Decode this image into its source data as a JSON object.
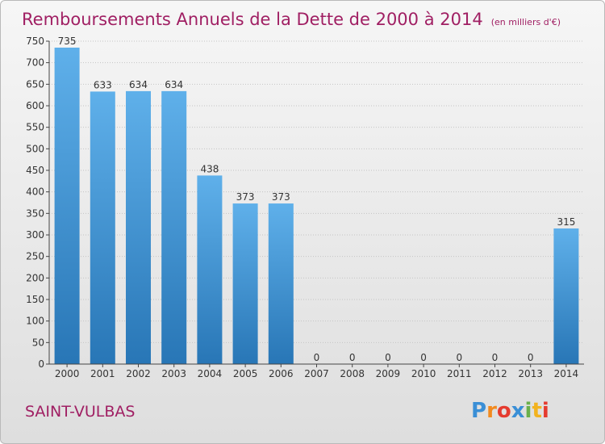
{
  "chart_data": {
    "type": "bar",
    "title": "Remboursements Annuels de la Dette de 2000 à 2014",
    "subtitle": "(en milliers d'€)",
    "categories": [
      "2000",
      "2001",
      "2002",
      "2003",
      "2004",
      "2005",
      "2006",
      "2007",
      "2008",
      "2009",
      "2010",
      "2011",
      "2012",
      "2013",
      "2014"
    ],
    "values": [
      735,
      633,
      634,
      634,
      438,
      373,
      373,
      0,
      0,
      0,
      0,
      0,
      0,
      0,
      315
    ],
    "ylim": [
      0,
      750
    ],
    "yticks": [
      0,
      50,
      100,
      150,
      200,
      250,
      300,
      350,
      400,
      450,
      500,
      550,
      600,
      650,
      700,
      750
    ],
    "grid": true,
    "xlabel": "",
    "ylabel": ""
  },
  "labels": {
    "commune": "SAINT-VULBAS",
    "logo": "Proxiti"
  },
  "colors": {
    "title": "#a01f63",
    "commune": "#a01f63",
    "bar_top": "#5aaae6",
    "bar_bottom": "#2a78b8",
    "axis": "#333333"
  }
}
